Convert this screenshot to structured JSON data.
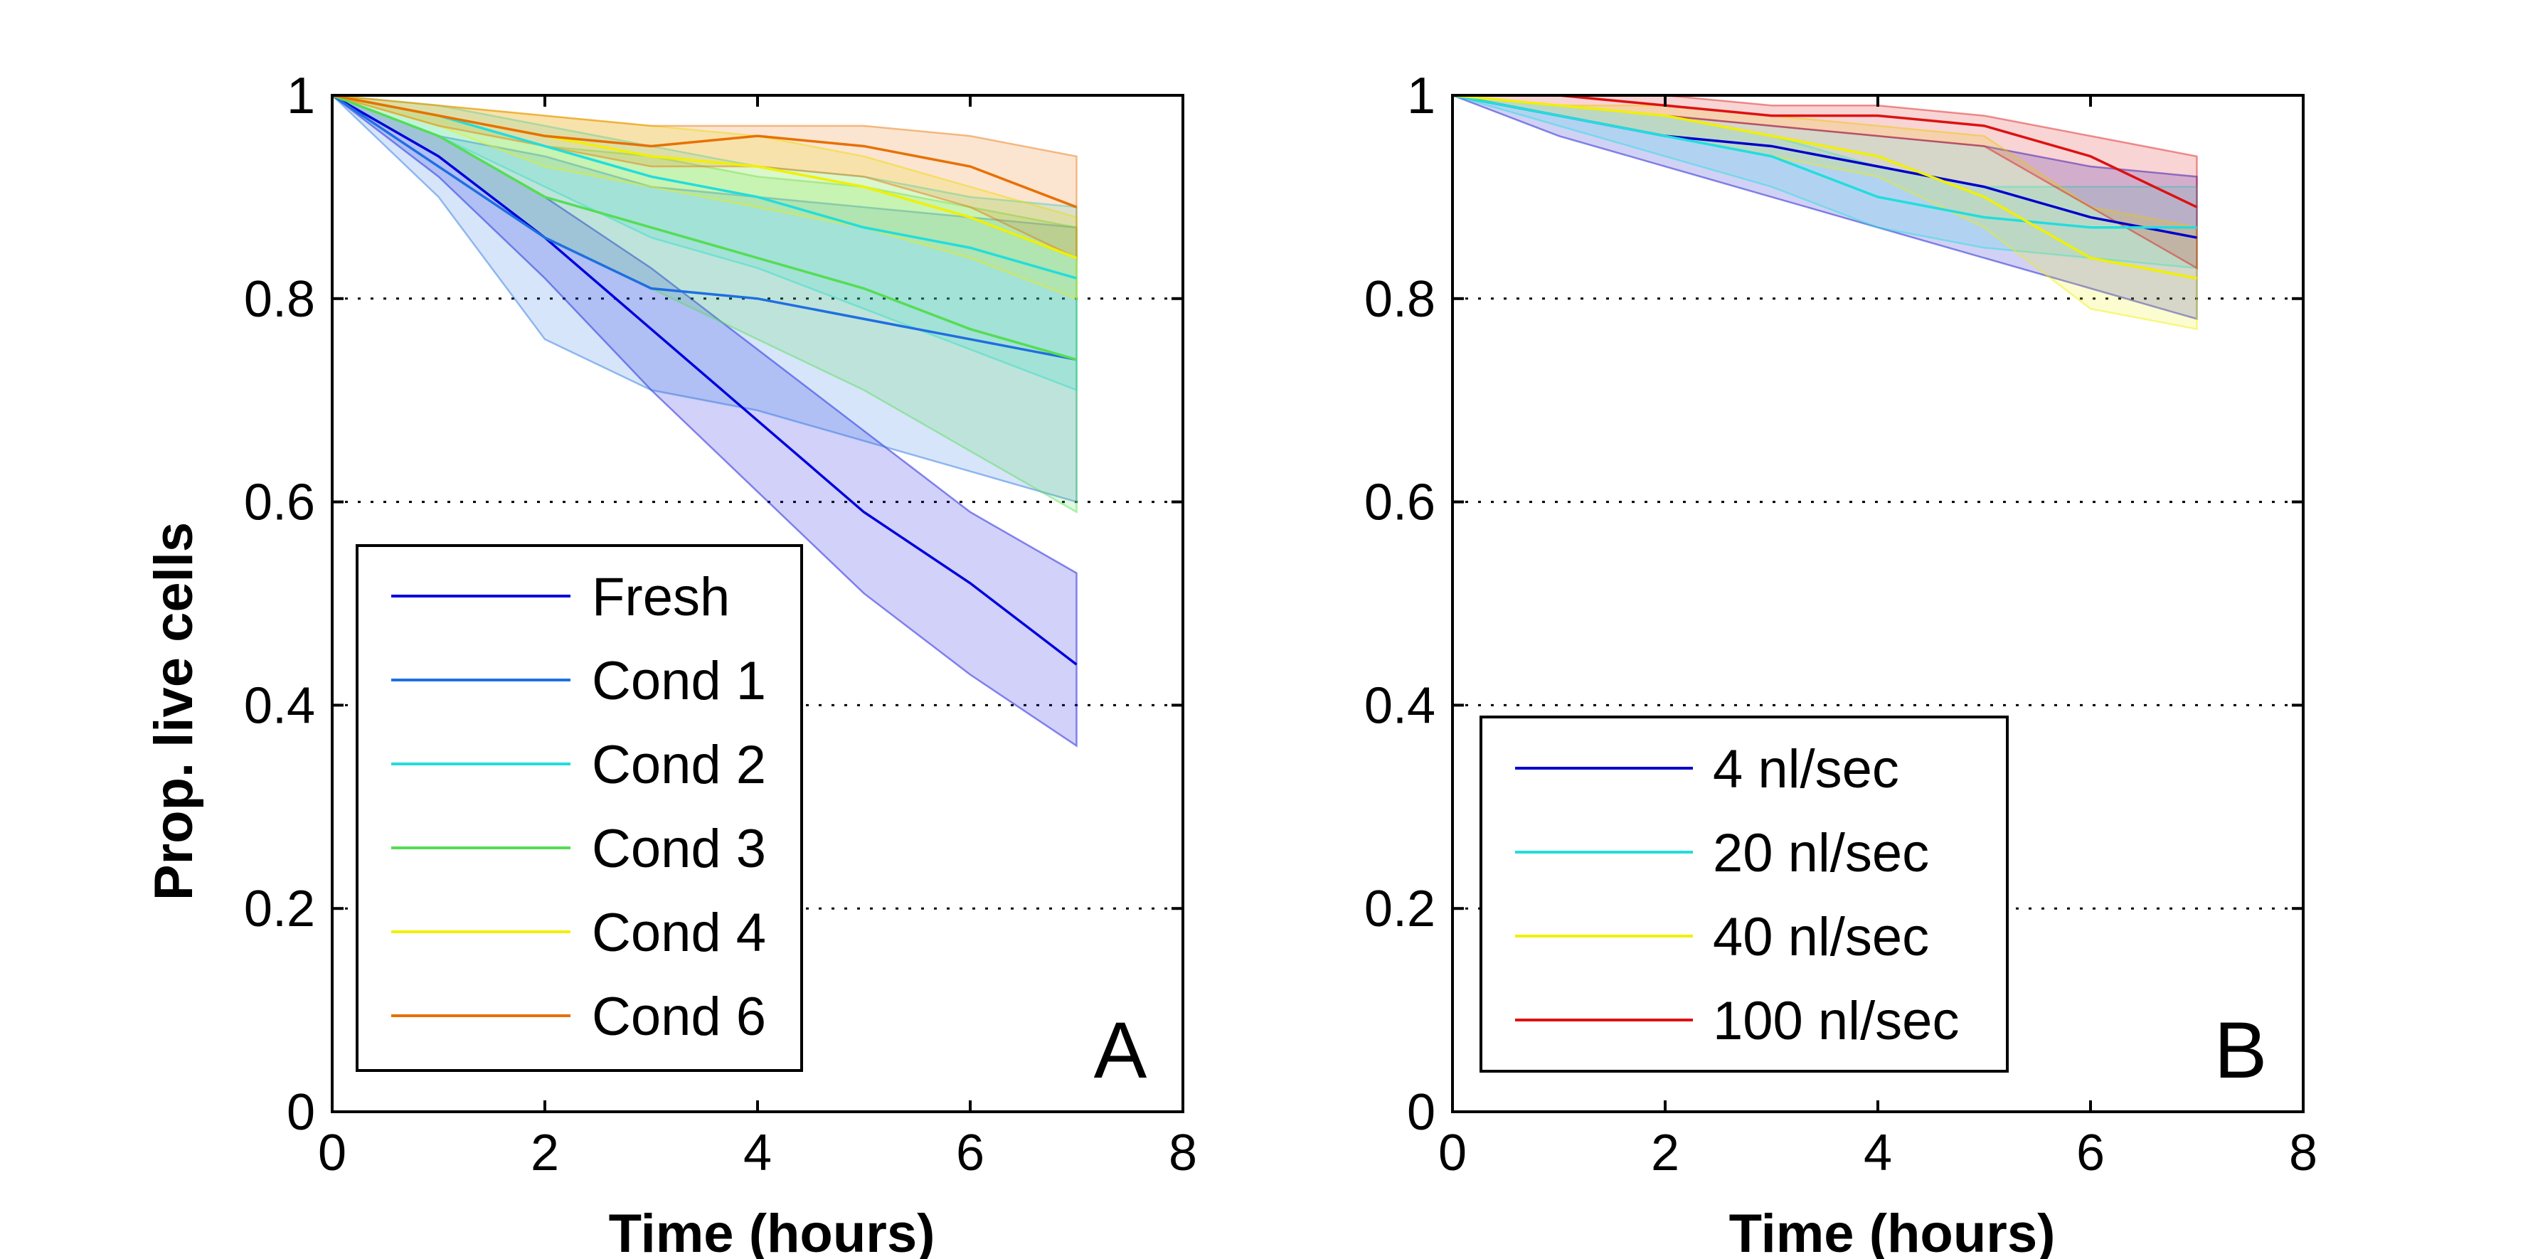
{
  "chart_data": [
    {
      "type": "line",
      "panel_label": "A",
      "xlabel": "Time (hours)",
      "ylabel": "Prop. live cells",
      "xlim": [
        0,
        8
      ],
      "ylim": [
        0,
        1
      ],
      "xticks": [
        "0",
        "2",
        "4",
        "6",
        "8"
      ],
      "yticks": [
        "0",
        "0.2",
        "0.4",
        "0.6",
        "0.8",
        "1"
      ],
      "grid": "horizontal-dotted",
      "legend_position": "bottom-left",
      "x": [
        0,
        1,
        2,
        3,
        4,
        5,
        6,
        7
      ],
      "series": [
        {
          "name": "Fresh",
          "color": "#0000dd",
          "values": [
            1,
            0.94,
            0.86,
            0.77,
            0.68,
            0.59,
            0.52,
            0.44
          ],
          "lower": [
            1,
            0.92,
            0.82,
            0.71,
            0.61,
            0.51,
            0.43,
            0.36
          ],
          "upper": [
            1,
            0.96,
            0.9,
            0.83,
            0.75,
            0.67,
            0.59,
            0.53
          ]
        },
        {
          "name": "Cond 1",
          "color": "#1e6fe0",
          "values": [
            1,
            0.93,
            0.86,
            0.81,
            0.8,
            0.78,
            0.76,
            0.74
          ],
          "lower": [
            1,
            0.9,
            0.76,
            0.71,
            0.69,
            0.66,
            0.63,
            0.6
          ],
          "upper": [
            1,
            0.96,
            0.94,
            0.91,
            0.9,
            0.89,
            0.88,
            0.87
          ]
        },
        {
          "name": "Cond 2",
          "color": "#22dddd",
          "values": [
            1,
            0.98,
            0.95,
            0.92,
            0.9,
            0.87,
            0.85,
            0.82
          ],
          "lower": [
            1,
            0.96,
            0.91,
            0.86,
            0.83,
            0.79,
            0.75,
            0.71
          ],
          "upper": [
            1,
            0.99,
            0.97,
            0.95,
            0.93,
            0.92,
            0.9,
            0.89
          ]
        },
        {
          "name": "Cond 3",
          "color": "#55dd55",
          "values": [
            1,
            0.96,
            0.9,
            0.87,
            0.84,
            0.81,
            0.77,
            0.74
          ],
          "lower": [
            1,
            0.94,
            0.86,
            0.81,
            0.76,
            0.71,
            0.65,
            0.59
          ],
          "upper": [
            1,
            0.98,
            0.95,
            0.94,
            0.92,
            0.91,
            0.89,
            0.87
          ]
        },
        {
          "name": "Cond 4",
          "color": "#f0f000",
          "values": [
            1,
            0.98,
            0.96,
            0.94,
            0.93,
            0.91,
            0.88,
            0.84
          ],
          "lower": [
            1,
            0.97,
            0.93,
            0.91,
            0.89,
            0.87,
            0.84,
            0.8
          ],
          "upper": [
            1,
            0.99,
            0.98,
            0.97,
            0.96,
            0.94,
            0.91,
            0.88
          ]
        },
        {
          "name": "Cond 6",
          "color": "#e87000",
          "values": [
            1,
            0.98,
            0.96,
            0.95,
            0.96,
            0.95,
            0.93,
            0.89
          ],
          "lower": [
            1,
            0.97,
            0.95,
            0.93,
            0.93,
            0.92,
            0.89,
            0.84
          ],
          "upper": [
            1,
            0.99,
            0.98,
            0.97,
            0.97,
            0.97,
            0.96,
            0.94
          ]
        }
      ]
    },
    {
      "type": "line",
      "panel_label": "B",
      "xlabel": "Time (hours)",
      "ylabel": "",
      "xlim": [
        0,
        8
      ],
      "ylim": [
        0,
        1
      ],
      "xticks": [
        "0",
        "2",
        "4",
        "6",
        "8"
      ],
      "yticks": [
        "0",
        "0.2",
        "0.4",
        "0.6",
        "0.8",
        "1"
      ],
      "grid": "horizontal-dotted",
      "legend_position": "bottom-left",
      "x": [
        0,
        1,
        2,
        3,
        4,
        5,
        6,
        7
      ],
      "series": [
        {
          "name": "4 nl/sec",
          "color": "#0000cc",
          "values": [
            1,
            0.98,
            0.96,
            0.95,
            0.93,
            0.91,
            0.88,
            0.86
          ],
          "lower": [
            1,
            0.96,
            0.93,
            0.9,
            0.87,
            0.84,
            0.81,
            0.78
          ],
          "upper": [
            1,
            0.99,
            0.98,
            0.97,
            0.96,
            0.95,
            0.93,
            0.92
          ]
        },
        {
          "name": "20 nl/sec",
          "color": "#22dddd",
          "values": [
            1,
            0.98,
            0.96,
            0.94,
            0.9,
            0.88,
            0.87,
            0.87
          ],
          "lower": [
            1,
            0.97,
            0.94,
            0.91,
            0.87,
            0.85,
            0.84,
            0.83
          ],
          "upper": [
            1,
            0.99,
            0.98,
            0.96,
            0.93,
            0.91,
            0.91,
            0.91
          ]
        },
        {
          "name": "40 nl/sec",
          "color": "#f0f000",
          "values": [
            1,
            0.99,
            0.98,
            0.96,
            0.94,
            0.9,
            0.84,
            0.82
          ],
          "lower": [
            1,
            0.98,
            0.96,
            0.94,
            0.92,
            0.87,
            0.79,
            0.77
          ],
          "upper": [
            1,
            0.99,
            0.99,
            0.98,
            0.97,
            0.96,
            0.89,
            0.87
          ]
        },
        {
          "name": "100 nl/sec",
          "color": "#dd1111",
          "values": [
            1,
            1.0,
            0.99,
            0.98,
            0.98,
            0.97,
            0.94,
            0.89
          ],
          "lower": [
            1,
            0.99,
            0.98,
            0.97,
            0.96,
            0.95,
            0.89,
            0.83
          ],
          "upper": [
            1,
            1.0,
            1.0,
            0.99,
            0.99,
            0.98,
            0.96,
            0.94
          ]
        }
      ]
    }
  ]
}
